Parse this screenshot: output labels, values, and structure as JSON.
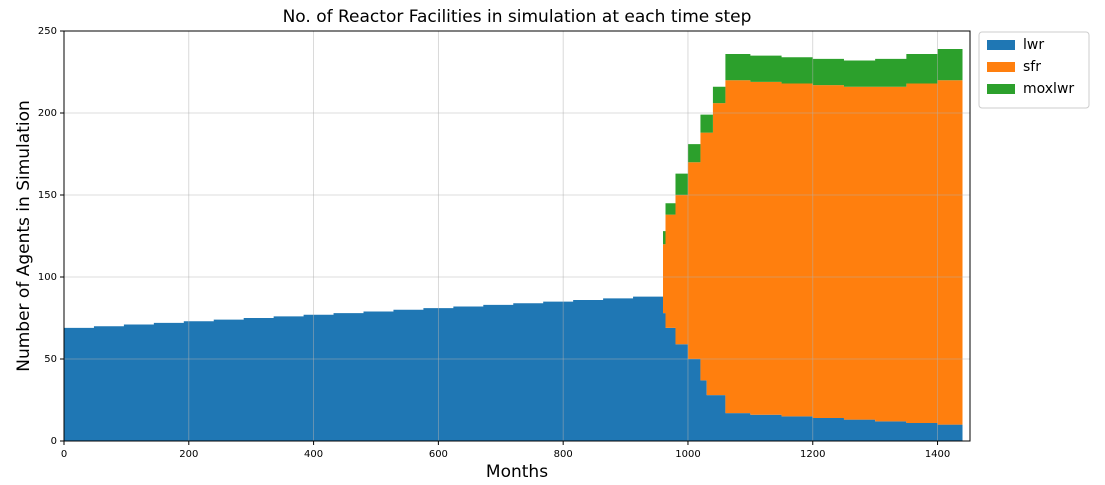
{
  "chart_data": {
    "type": "stacked_step_area",
    "title": "No. of Reactor Facilities in simulation at each time step",
    "x_label": "Months",
    "y_label": "Number of Agents in Simulation",
    "x": [
      0,
      48,
      96,
      144,
      192,
      240,
      288,
      336,
      384,
      432,
      480,
      528,
      576,
      624,
      672,
      720,
      768,
      816,
      864,
      912,
      960,
      964,
      980,
      1000,
      1010,
      1020,
      1030,
      1040,
      1060,
      1100,
      1150,
      1200,
      1250,
      1300,
      1350,
      1400,
      1440
    ],
    "series": [
      {
        "name": "lwr",
        "color": "#1f77b4",
        "values": [
          69,
          70,
          71,
          72,
          73,
          74,
          75,
          76,
          77,
          78,
          79,
          80,
          81,
          82,
          83,
          84,
          85,
          86,
          87,
          88,
          78,
          69,
          59,
          50,
          50,
          37,
          28,
          28,
          17,
          16,
          15,
          14,
          13,
          12,
          11,
          10,
          10
        ]
      },
      {
        "name": "sfr",
        "color": "#ff7f0e",
        "values": [
          0,
          0,
          0,
          0,
          0,
          0,
          0,
          0,
          0,
          0,
          0,
          0,
          0,
          0,
          0,
          0,
          0,
          0,
          0,
          0,
          42,
          69,
          91,
          120,
          120,
          151,
          160,
          178,
          203,
          203,
          203,
          203,
          203,
          204,
          207,
          210,
          210
        ]
      },
      {
        "name": "moxlwr",
        "color": "#2ca02c",
        "values": [
          0,
          0,
          0,
          0,
          0,
          0,
          0,
          0,
          0,
          0,
          0,
          0,
          0,
          0,
          0,
          0,
          0,
          0,
          0,
          0,
          8,
          7,
          13,
          11,
          11,
          11,
          11,
          10,
          16,
          16,
          16,
          16,
          16,
          17,
          18,
          19,
          19
        ]
      }
    ],
    "xlim": [
      0,
      1452
    ],
    "ylim": [
      0,
      250
    ],
    "xticks": [
      0,
      200,
      400,
      600,
      800,
      1000,
      1200,
      1400
    ],
    "yticks": [
      0,
      50,
      100,
      150,
      200,
      250
    ],
    "grid": true,
    "legend": "outside upper right"
  }
}
